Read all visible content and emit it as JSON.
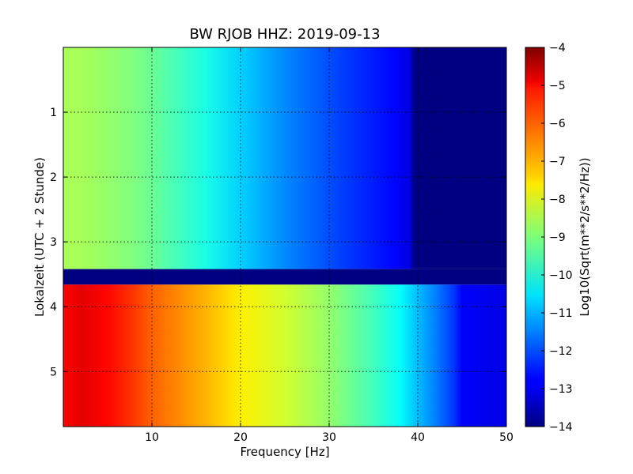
{
  "chart_data": {
    "type": "heatmap",
    "title": "BW RJOB HHZ: 2019-09-13",
    "xlabel": "Frequency [Hz]",
    "ylabel": "Lokalzeit (UTC + 2 Stunde)",
    "colorbar_label": "Log10(Sqrt(m**2/s**2/Hz))",
    "xlim": [
      0,
      50
    ],
    "ylim": [
      5.85,
      0
    ],
    "x_ticks": [
      10,
      20,
      30,
      40,
      50
    ],
    "y_ticks": [
      1,
      2,
      3,
      4,
      5
    ],
    "color_range": [
      -14,
      -4
    ],
    "colorbar_ticks": [
      -4,
      -5,
      -6,
      -7,
      -8,
      -9,
      -10,
      -11,
      -12,
      -13,
      -14
    ],
    "colormap": "jet",
    "grid": true,
    "gap_hours": [
      3.42,
      3.66
    ],
    "segments": [
      {
        "hours": [
          0,
          3.42
        ],
        "frequency_hz": [
          0,
          2,
          5,
          8,
          10,
          13,
          16,
          20,
          25,
          30,
          34,
          37,
          39,
          39.5,
          40,
          50
        ],
        "level": [
          -8.6,
          -8.6,
          -8.8,
          -9.0,
          -9.2,
          -9.6,
          -10.0,
          -10.7,
          -11.4,
          -12.0,
          -12.4,
          -12.7,
          -13.0,
          -13.8,
          -14.0,
          -14.0
        ]
      },
      {
        "hours": [
          3.66,
          5.85
        ],
        "frequency_hz": [
          0,
          2,
          5,
          8,
          10,
          13,
          16,
          20,
          25,
          30,
          35,
          38,
          40,
          42,
          44,
          45,
          50
        ],
        "level": [
          -5.3,
          -5.0,
          -5.3,
          -5.8,
          -6.2,
          -6.6,
          -7.0,
          -7.6,
          -8.2,
          -8.8,
          -9.6,
          -10.2,
          -10.9,
          -11.5,
          -12.2,
          -12.8,
          -13.0
        ]
      }
    ]
  }
}
